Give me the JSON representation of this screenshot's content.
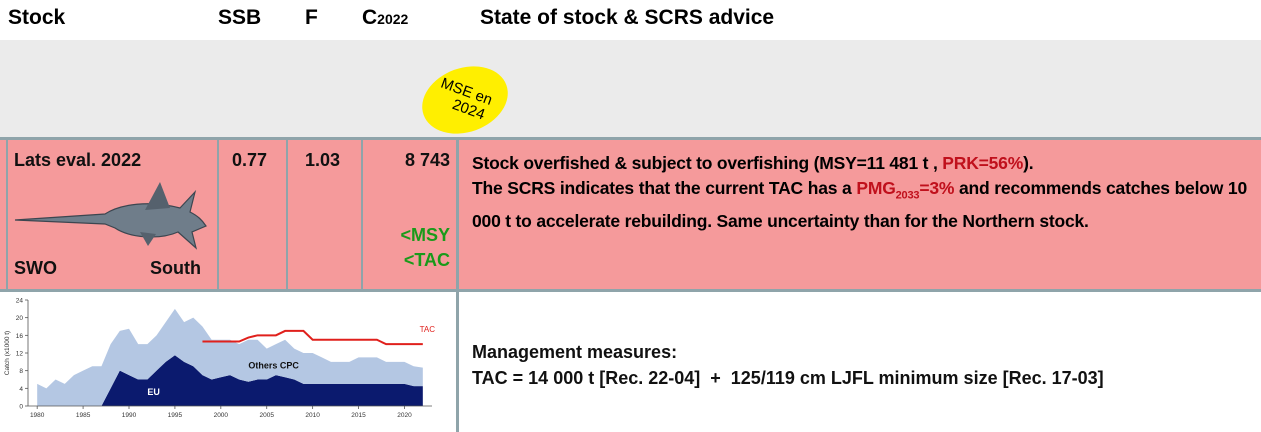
{
  "header": {
    "stock": "Stock",
    "ssb": "SSB",
    "f": "F",
    "catch_main": "C",
    "catch_sub": "2022",
    "advice_title": "State of stock & SCRS advice"
  },
  "badge": {
    "line1": "MSE en",
    "line2": "2024"
  },
  "row": {
    "evaluation": "Lats eval. 2022",
    "species": "SWO",
    "area": "South",
    "ssb": "0.77",
    "f": "1.03",
    "catch": "8 743",
    "catch_notes": [
      "<MSY",
      "<TAC"
    ],
    "advice": {
      "line1": [
        "Stock overfished & subject to overfishing (MSY=11 481 t , ",
        "PRK=56%",
        ")."
      ],
      "line2_start": "The SCRS indicates that the current TAC has a ",
      "pmg_main": "PMG",
      "pmg_sub": "2033",
      "pmg_value": "=3%",
      "line2_end": " and recommends catches below 10 000 t to accelerate rebuilding. Same uncertainty than for the Northern stock."
    }
  },
  "management": {
    "title": "Management measures:",
    "text": "TAC = 14 000 t [Rec. 22-04]  +  125/119 cm LJFL minimum size [Rec. 17-03]"
  },
  "chart_data": {
    "type": "area",
    "y_label": "Catch (x1000 t)",
    "x": [
      1980,
      1981,
      1982,
      1983,
      1984,
      1985,
      1986,
      1987,
      1988,
      1989,
      1990,
      1991,
      1992,
      1993,
      1994,
      1995,
      1996,
      1997,
      1998,
      1999,
      2000,
      2001,
      2002,
      2003,
      2004,
      2005,
      2006,
      2007,
      2008,
      2009,
      2010,
      2011,
      2012,
      2013,
      2014,
      2015,
      2016,
      2017,
      2018,
      2019,
      2020,
      2021,
      2022
    ],
    "series": [
      {
        "name": "EU",
        "color": "#0b1a6e",
        "values": [
          0,
          0,
          0,
          0,
          0,
          0,
          0,
          0,
          4,
          8,
          7,
          6,
          6,
          8,
          10,
          11.5,
          10,
          9,
          7,
          6,
          6.5,
          7,
          6,
          5.5,
          6,
          6,
          7,
          6.5,
          6,
          5,
          5,
          5,
          5,
          5,
          5,
          5,
          5,
          5,
          5,
          5,
          5,
          4.5,
          4.5
        ]
      },
      {
        "name": "Others CPC",
        "color": "#b4c7e3",
        "values": [
          5,
          4,
          6,
          5,
          7,
          8,
          9,
          9,
          10,
          9,
          10.5,
          8,
          8,
          8,
          9,
          10.5,
          9,
          11,
          11,
          9,
          8.5,
          8,
          8,
          9.5,
          9,
          7,
          7,
          8.5,
          7,
          7,
          7,
          6,
          5,
          5,
          5,
          6,
          6,
          6,
          5,
          5,
          5,
          4.5,
          4.2
        ]
      }
    ],
    "tac": {
      "name": "TAC",
      "color": "#e0201c",
      "x": [
        1998,
        1999,
        2000,
        2001,
        2002,
        2003,
        2004,
        2005,
        2006,
        2007,
        2008,
        2009,
        2010,
        2011,
        2012,
        2013,
        2014,
        2015,
        2016,
        2017,
        2018,
        2019,
        2020,
        2021,
        2022
      ],
      "values": [
        14.6,
        14.6,
        14.6,
        14.6,
        14.6,
        15.5,
        16,
        16,
        16,
        17,
        17,
        17,
        15,
        15,
        15,
        15,
        15,
        15,
        15,
        15,
        14,
        14,
        14,
        14,
        14
      ]
    },
    "xlim": [
      1979,
      2023
    ],
    "ylim": [
      0,
      24
    ],
    "xticks": [
      1980,
      1985,
      1990,
      1995,
      2000,
      2005,
      2010,
      2015,
      2020
    ],
    "yticks": [
      0,
      4,
      8,
      12,
      16,
      20,
      24
    ]
  }
}
